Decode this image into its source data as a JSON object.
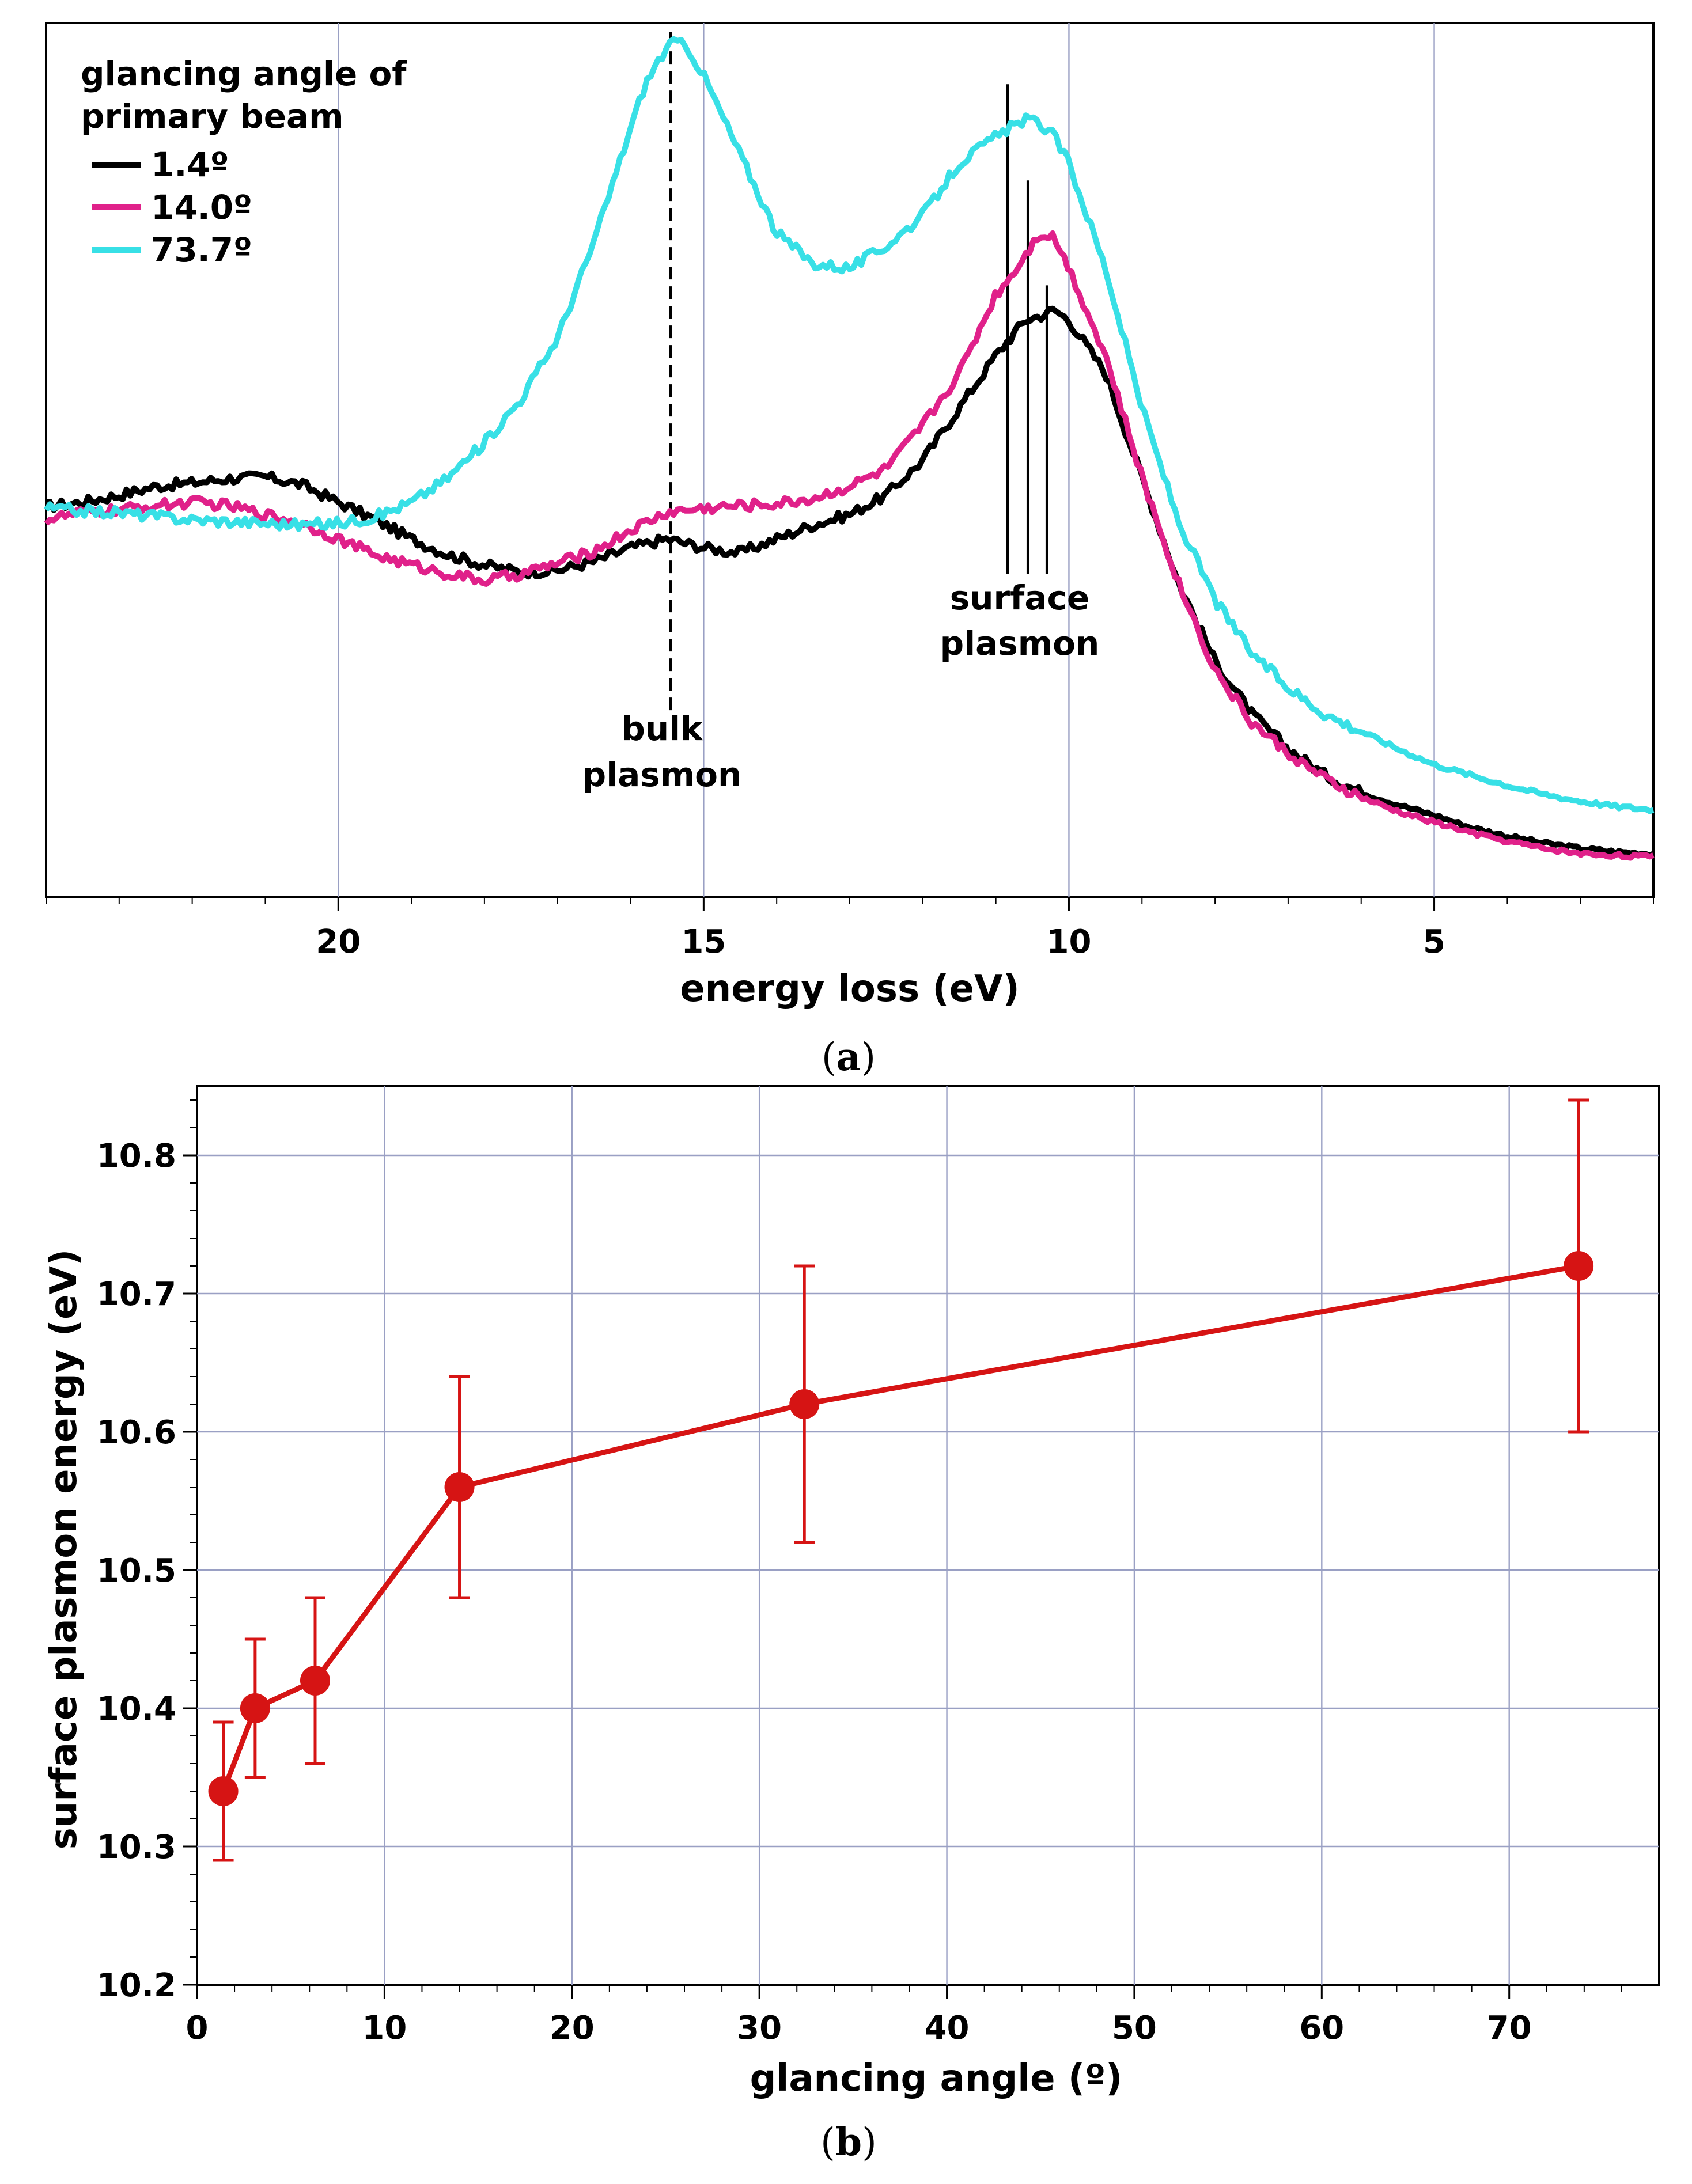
{
  "chart_data": [
    {
      "panel_label": "(a)",
      "panel_letter": "a",
      "type": "line",
      "title": "",
      "xlabel": "energy loss (eV)",
      "ylabel": "",
      "xlim": [
        24,
        2
      ],
      "x_reversed": true,
      "ylim": [
        0,
        1
      ],
      "grid": true,
      "xticks": [
        20,
        15,
        10,
        5
      ],
      "legend": {
        "title_line1": "glancing angle of",
        "title_line2": "primary beam",
        "position": "top-left",
        "entries": [
          "1.4º",
          "14.0º",
          "73.7º"
        ]
      },
      "series": [
        {
          "name": "1.4º",
          "color": "#000000",
          "x": [
            24,
            23.5,
            23,
            22.5,
            22,
            21.5,
            21,
            20.5,
            20,
            19.5,
            19,
            18.5,
            18,
            17.5,
            17,
            16.5,
            16,
            15.5,
            15,
            14.5,
            14,
            13.5,
            13,
            12.5,
            12,
            11.5,
            11,
            10.8,
            10.6,
            10.4,
            10.2,
            10,
            9.5,
            9,
            8.5,
            8,
            7.5,
            7,
            6.5,
            6,
            5.5,
            5,
            4.5,
            4,
            3.5,
            3,
            2.5,
            2
          ],
          "y": [
            0.447,
            0.452,
            0.46,
            0.47,
            0.474,
            0.479,
            0.481,
            0.472,
            0.452,
            0.432,
            0.41,
            0.392,
            0.38,
            0.372,
            0.374,
            0.384,
            0.4,
            0.41,
            0.4,
            0.394,
            0.41,
            0.426,
            0.438,
            0.46,
            0.5,
            0.56,
            0.62,
            0.64,
            0.66,
            0.665,
            0.672,
            0.66,
            0.6,
            0.48,
            0.36,
            0.27,
            0.21,
            0.17,
            0.14,
            0.12,
            0.106,
            0.094,
            0.08,
            0.07,
            0.062,
            0.056,
            0.052,
            0.05
          ]
        },
        {
          "name": "14.0º",
          "color": "#e0218a",
          "x": [
            24,
            23.5,
            23,
            22.5,
            22,
            21.5,
            21,
            20.5,
            20,
            19.5,
            19,
            18.5,
            18,
            17.5,
            17,
            16.5,
            16,
            15.5,
            15,
            14.5,
            14,
            13.5,
            13,
            12.5,
            12,
            11.5,
            11,
            10.8,
            10.6,
            10.4,
            10.2,
            10,
            9.5,
            9,
            8.5,
            8,
            7.5,
            7,
            6.5,
            6,
            5.5,
            5,
            4.5,
            4,
            3.5,
            3,
            2.5,
            2
          ],
          "y": [
            0.432,
            0.44,
            0.443,
            0.448,
            0.452,
            0.448,
            0.438,
            0.428,
            0.41,
            0.392,
            0.38,
            0.37,
            0.362,
            0.37,
            0.382,
            0.396,
            0.42,
            0.44,
            0.445,
            0.448,
            0.45,
            0.456,
            0.47,
            0.49,
            0.54,
            0.6,
            0.69,
            0.71,
            0.735,
            0.76,
            0.755,
            0.72,
            0.62,
            0.48,
            0.36,
            0.26,
            0.2,
            0.165,
            0.135,
            0.114,
            0.098,
            0.086,
            0.074,
            0.064,
            0.056,
            0.05,
            0.048,
            0.046
          ]
        },
        {
          "name": "73.7º",
          "color": "#38e0e6",
          "x": [
            24,
            23.5,
            23,
            22.5,
            22,
            21.5,
            21,
            20.5,
            20,
            19.5,
            19,
            18.5,
            18,
            17.5,
            17,
            16.5,
            16,
            15.8,
            15.6,
            15.4,
            15.2,
            15,
            14.5,
            14,
            13.5,
            13,
            12.5,
            12,
            11.5,
            11,
            10.8,
            10.6,
            10.4,
            10.2,
            10,
            9.5,
            9,
            8.5,
            8,
            7.5,
            7,
            6.5,
            6,
            5.5,
            5,
            4.5,
            4,
            3.5,
            3,
            2.5,
            2
          ],
          "y": [
            0.445,
            0.442,
            0.44,
            0.436,
            0.432,
            0.43,
            0.428,
            0.426,
            0.428,
            0.435,
            0.452,
            0.48,
            0.52,
            0.57,
            0.64,
            0.75,
            0.88,
            0.93,
            0.96,
            0.98,
            0.97,
            0.94,
            0.85,
            0.76,
            0.725,
            0.72,
            0.745,
            0.78,
            0.84,
            0.87,
            0.88,
            0.89,
            0.885,
            0.87,
            0.84,
            0.72,
            0.56,
            0.43,
            0.34,
            0.28,
            0.24,
            0.21,
            0.19,
            0.17,
            0.152,
            0.14,
            0.128,
            0.118,
            0.11,
            0.104,
            0.1
          ]
        }
      ],
      "annotations": {
        "bulk_line1": "bulk",
        "bulk_line2": "plasmon",
        "bulk_x": 15.45,
        "bulk_line_y_top": 0.99,
        "bulk_line_y_bottom": 0.21,
        "surface_line1": "surface",
        "surface_line2": "plasmon",
        "surface_lines": [
          {
            "x": 10.84,
            "y_top": 0.93
          },
          {
            "x": 10.56,
            "y_top": 0.82
          },
          {
            "x": 10.3,
            "y_top": 0.7
          }
        ],
        "surface_line_y_bottom": 0.37
      }
    },
    {
      "panel_label": "(b)",
      "panel_letter": "b",
      "type": "line",
      "title": "",
      "xlabel": "glancing angle (º)",
      "ylabel": "surface plasmon energy (eV)",
      "xlim": [
        0,
        78
      ],
      "ylim": [
        10.2,
        10.85
      ],
      "grid": true,
      "xticks": [
        0,
        10,
        20,
        30,
        40,
        50,
        60,
        70
      ],
      "yticks": [
        10.2,
        10.3,
        10.4,
        10.5,
        10.6,
        10.7,
        10.8
      ],
      "ytick_labels": [
        "10.2",
        "10.3",
        "10.4",
        "10.5",
        "10.6",
        "10.7",
        "10.8"
      ],
      "color": "#d61414",
      "x": [
        1.4,
        3.1,
        6.3,
        14.0,
        32.4,
        73.7
      ],
      "y": [
        10.34,
        10.4,
        10.42,
        10.56,
        10.62,
        10.72
      ],
      "err_low": [
        10.29,
        10.35,
        10.36,
        10.48,
        10.52,
        10.6
      ],
      "err_high": [
        10.39,
        10.45,
        10.48,
        10.64,
        10.72,
        10.84
      ]
    }
  ]
}
